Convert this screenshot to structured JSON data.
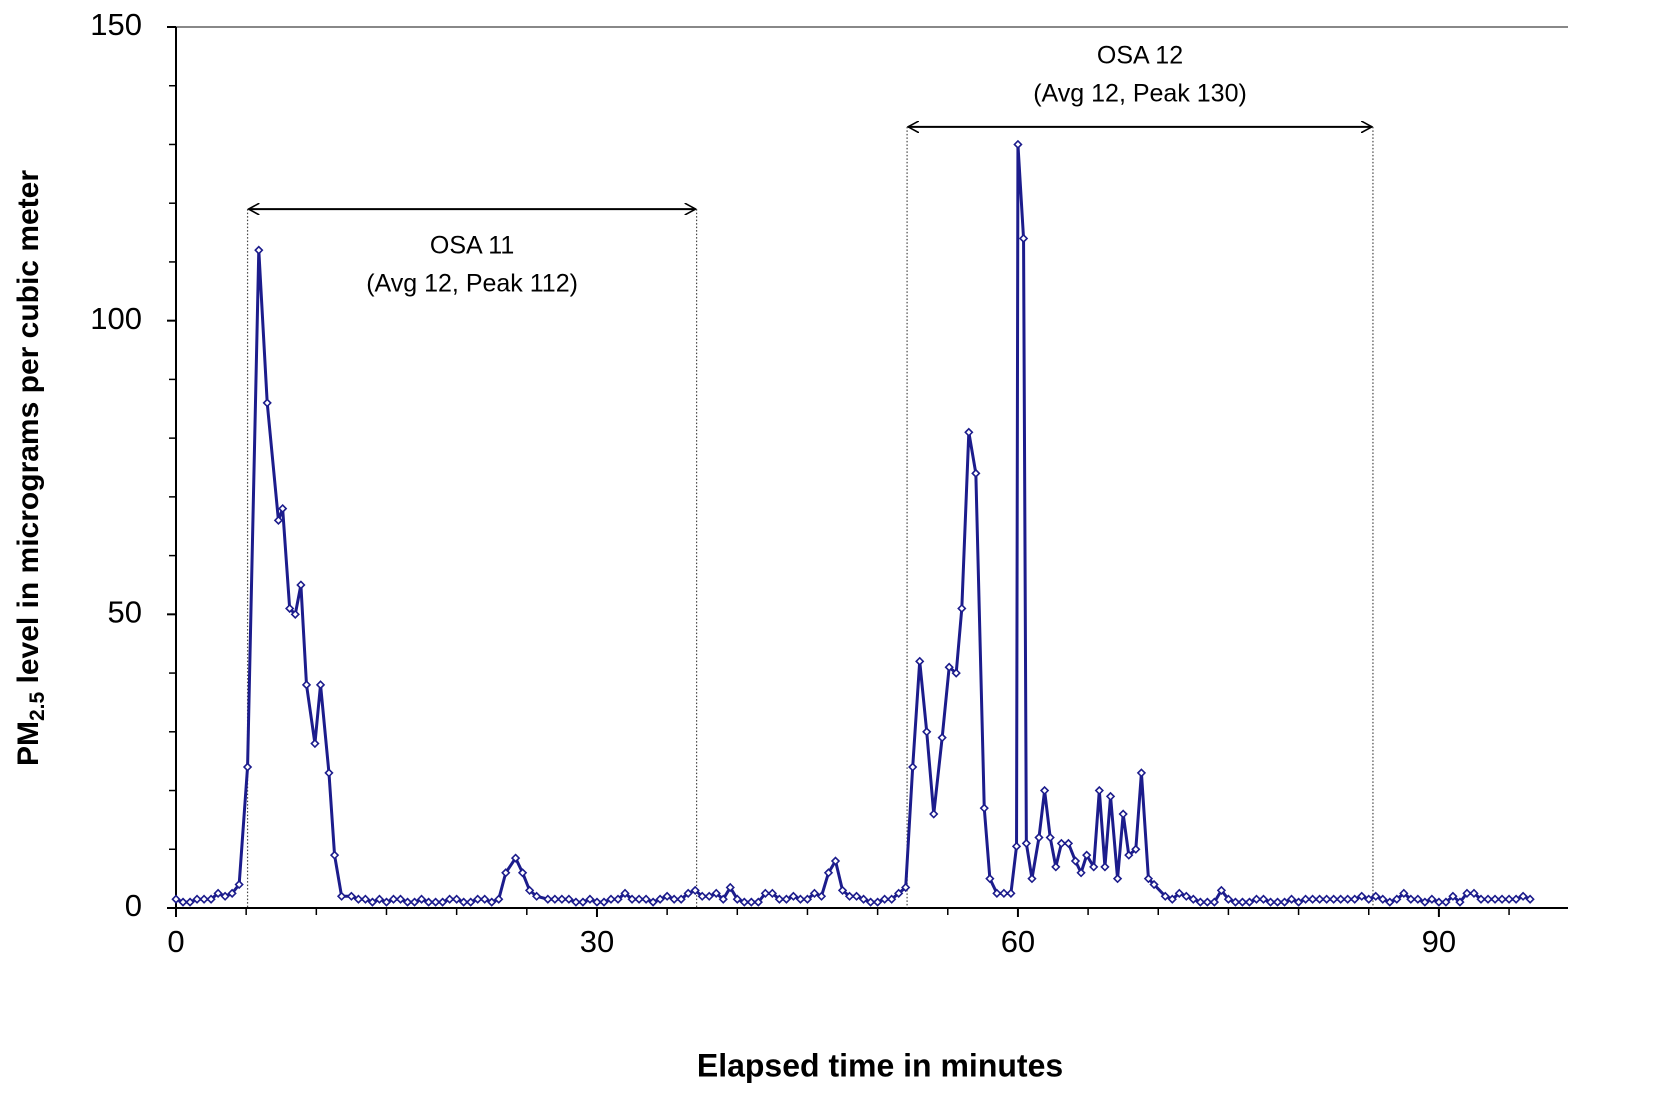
{
  "chart_data": {
    "type": "line",
    "xlabel": "Elapsed time in minutes",
    "ylabel": {
      "main": "PM",
      "sub": "2.5",
      "rest": " level in micrograms per cubic meter"
    },
    "xlim": [
      0,
      99.2
    ],
    "ylim": [
      0,
      150
    ],
    "xticks": [
      0,
      30,
      60,
      90
    ],
    "yticks": [
      0,
      50,
      100,
      150
    ],
    "xminorticks": [
      5,
      10,
      15,
      20,
      25,
      35,
      40,
      45,
      50,
      55,
      65,
      70,
      75,
      80,
      85,
      95
    ],
    "yminorticks": [
      10,
      20,
      30,
      40,
      60,
      70,
      80,
      90,
      110,
      120,
      130,
      140
    ],
    "series": [
      {
        "color": "#1c1c8c",
        "x": [
          0,
          0.5,
          1,
          1.5,
          2,
          2.5,
          3,
          3.5,
          4,
          4.5,
          5.1,
          5.9,
          6.5,
          7.3,
          7.6,
          8.1,
          8.5,
          8.9,
          9.3,
          9.9,
          10.3,
          10.9,
          11.3,
          11.8,
          12.5,
          13,
          13.5,
          14,
          14.5,
          15,
          15.5,
          16,
          16.5,
          17,
          17.5,
          18,
          18.5,
          19,
          19.5,
          20,
          20.5,
          21,
          21.5,
          22,
          22.5,
          23,
          23.5,
          24.2,
          24.7,
          25.2,
          25.7,
          26.5,
          27,
          27.5,
          28,
          28.5,
          29,
          29.5,
          30,
          30.5,
          31,
          31.5,
          32,
          32.5,
          33,
          33.5,
          34,
          34.5,
          35,
          35.5,
          36,
          36.5,
          37,
          37.5,
          38,
          38.5,
          39,
          39.5,
          40,
          40.5,
          41,
          41.5,
          42,
          42.5,
          43,
          43.5,
          44,
          44.5,
          45,
          45.5,
          46,
          46.5,
          47,
          47.5,
          48,
          48.5,
          49,
          49.5,
          50,
          50.5,
          51,
          51.5,
          52,
          52.5,
          53,
          53.5,
          54,
          54.6,
          55.1,
          55.6,
          56,
          56.5,
          57,
          57.6,
          58,
          58.5,
          59,
          59.5,
          59.9,
          60,
          60.4,
          60.6,
          61,
          61.5,
          61.9,
          62.3,
          62.7,
          63.1,
          63.6,
          64.1,
          64.5,
          64.9,
          65.4,
          65.8,
          66.2,
          66.6,
          67.1,
          67.5,
          67.9,
          68.4,
          68.8,
          69.3,
          69.7,
          70.5,
          71,
          71.5,
          72,
          72.5,
          73,
          73.5,
          74,
          74.5,
          75,
          75.5,
          76,
          76.5,
          77,
          77.5,
          78,
          78.5,
          79,
          79.5,
          80,
          80.5,
          81,
          81.5,
          82,
          82.5,
          83,
          83.5,
          84,
          84.5,
          85,
          85.5,
          86,
          86.5,
          87,
          87.5,
          88,
          88.5,
          89,
          89.5,
          90,
          90.5,
          91,
          91.5,
          92,
          92.5,
          93,
          93.5,
          94,
          94.5,
          95,
          95.5,
          96,
          96.5
        ],
        "values": [
          1.5,
          1,
          1,
          1.5,
          1.5,
          1.5,
          2.5,
          2,
          2.5,
          4,
          24,
          112,
          86,
          66,
          68,
          51,
          50,
          55,
          38,
          28,
          38,
          23,
          9,
          2,
          2,
          1.5,
          1.5,
          1,
          1.5,
          1,
          1.5,
          1.5,
          1,
          1,
          1.5,
          1,
          1,
          1,
          1.5,
          1.5,
          1,
          1,
          1.5,
          1.5,
          1,
          1.5,
          6,
          8.5,
          6,
          3,
          2,
          1.5,
          1.5,
          1.5,
          1.5,
          1,
          1,
          1.5,
          1,
          1,
          1.5,
          1.5,
          2.5,
          1.5,
          1.5,
          1.5,
          1,
          1.5,
          2,
          1.5,
          1.5,
          2.5,
          3,
          2,
          2,
          2.5,
          1.5,
          3.5,
          1.5,
          1,
          1,
          1,
          2.5,
          2.5,
          1.5,
          1.5,
          2,
          1.5,
          1.5,
          2.5,
          2,
          6,
          8,
          3,
          2,
          2,
          1.5,
          1,
          1,
          1.5,
          1.5,
          2.5,
          3.5,
          24,
          42,
          30,
          16,
          29,
          41,
          40,
          51,
          81,
          74,
          17,
          5,
          2.5,
          2.5,
          2.5,
          10.5,
          130,
          114,
          11,
          5,
          12,
          20,
          12,
          7,
          11,
          11,
          8,
          6,
          9,
          7,
          20,
          7,
          19,
          5,
          16,
          9,
          10,
          23,
          5,
          4,
          2,
          1.5,
          2.5,
          2,
          1.5,
          1,
          1,
          1,
          3,
          1.5,
          1,
          1,
          1,
          1.5,
          1.5,
          1,
          1,
          1,
          1.5,
          1,
          1.5,
          1.5,
          1.5,
          1.5,
          1.5,
          1.5,
          1.5,
          1.5,
          2,
          1.5,
          2,
          1.5,
          1,
          1.5,
          2.5,
          1.5,
          1.5,
          1,
          1.5,
          1,
          1,
          2,
          1,
          2.5,
          2.5,
          1.5,
          1.5,
          1.5,
          1.5,
          1.5,
          1.5,
          2,
          1.5
        ]
      }
    ],
    "annotations": [
      {
        "title": "OSA 11",
        "detail": "(Avg 12, Peak 112)",
        "x0": 5.1,
        "x1": 37.1,
        "y": 119,
        "label_position": "below"
      },
      {
        "title": "OSA 12",
        "detail": "(Avg 12, Peak 130)",
        "x0": 52.1,
        "x1": 85.3,
        "y": 133,
        "label_position": "above"
      }
    ]
  }
}
